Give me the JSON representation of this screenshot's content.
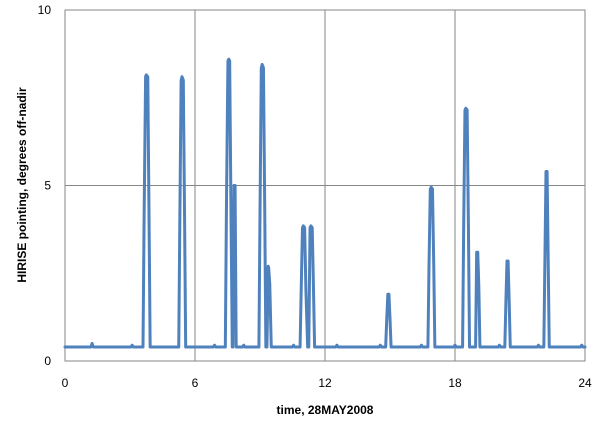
{
  "chart_data": {
    "type": "line",
    "xlabel": "time, 28MAY2008",
    "ylabel": "HIRISE pointing, degrees off-nadir",
    "xlim": [
      0,
      24
    ],
    "ylim": [
      0,
      10
    ],
    "x_ticks": [
      "0",
      "6",
      "12",
      "18",
      "24"
    ],
    "y_ticks": [
      "0",
      "5",
      "10"
    ],
    "grid": true,
    "line_color": "#4f81bd",
    "series": [
      {
        "baseline": 0.4,
        "x": [
          0,
          1.2,
          1.25,
          1.3,
          3.05,
          3.1,
          3.15,
          3.6,
          3.65,
          3.72,
          3.75,
          3.82,
          3.88,
          3.93,
          5.25,
          5.3,
          5.36,
          5.4,
          5.46,
          5.52,
          5.57,
          6.85,
          6.9,
          6.95,
          7.4,
          7.45,
          7.52,
          7.56,
          7.6,
          7.66,
          7.72,
          7.75,
          7.8,
          7.85,
          7.9,
          7.95,
          8.2,
          8.25,
          8.3,
          8.95,
          9.0,
          9.06,
          9.1,
          9.16,
          9.22,
          9.27,
          9.32,
          9.38,
          9.4,
          9.45,
          9.52,
          9.57,
          10.5,
          10.55,
          10.6,
          10.85,
          10.9,
          10.96,
          11.0,
          11.06,
          11.12,
          11.2,
          11.25,
          11.31,
          11.35,
          11.41,
          11.47,
          11.52,
          12.5,
          12.55,
          12.6,
          14.5,
          14.55,
          14.6,
          14.8,
          14.85,
          14.9,
          14.95,
          15.0,
          15.05,
          16.4,
          16.45,
          16.5,
          16.75,
          16.8,
          16.86,
          16.9,
          16.96,
          17.02,
          17.07,
          17.95,
          18.0,
          18.05,
          18.35,
          18.4,
          18.46,
          18.5,
          18.56,
          18.62,
          18.67,
          18.95,
          19.0,
          19.05,
          19.1,
          19.15,
          19.2,
          20.0,
          20.05,
          20.1,
          20.3,
          20.35,
          20.4,
          20.45,
          20.5,
          20.55,
          21.8,
          21.85,
          21.9,
          22.1,
          22.15,
          22.2,
          22.25,
          22.3,
          22.35,
          23.8,
          23.85,
          23.9,
          24
        ],
        "y": [
          0.4,
          0.4,
          0.5,
          0.4,
          0.4,
          0.45,
          0.4,
          0.4,
          4.0,
          8.1,
          8.15,
          8.1,
          4.0,
          0.4,
          0.4,
          4.0,
          8.0,
          8.1,
          8.0,
          4.0,
          0.4,
          0.4,
          0.45,
          0.4,
          0.4,
          4.3,
          8.55,
          8.6,
          8.55,
          4.3,
          0.4,
          0.4,
          5.0,
          5.0,
          0.4,
          0.4,
          0.4,
          0.45,
          0.4,
          0.4,
          4.2,
          8.35,
          8.45,
          8.35,
          4.2,
          0.4,
          0.4,
          2.7,
          2.65,
          2.2,
          0.4,
          0.4,
          0.4,
          0.45,
          0.4,
          0.4,
          2.0,
          3.8,
          3.85,
          3.8,
          2.0,
          0.4,
          0.4,
          3.8,
          3.85,
          3.8,
          2.0,
          0.4,
          0.4,
          0.45,
          0.4,
          0.4,
          0.45,
          0.4,
          0.4,
          1.2,
          1.9,
          1.9,
          1.2,
          0.4,
          0.4,
          0.45,
          0.4,
          0.4,
          2.7,
          4.9,
          4.95,
          4.9,
          2.7,
          0.4,
          0.4,
          0.45,
          0.4,
          0.4,
          3.8,
          7.15,
          7.2,
          7.15,
          3.8,
          0.4,
          0.4,
          3.1,
          3.1,
          2.1,
          0.4,
          0.4,
          0.4,
          0.45,
          0.4,
          0.4,
          1.7,
          2.85,
          2.85,
          1.7,
          0.4,
          0.4,
          0.45,
          0.4,
          0.4,
          2.9,
          5.4,
          5.4,
          2.9,
          0.4,
          0.4,
          0.45,
          0.4,
          0.4
        ]
      }
    ]
  }
}
